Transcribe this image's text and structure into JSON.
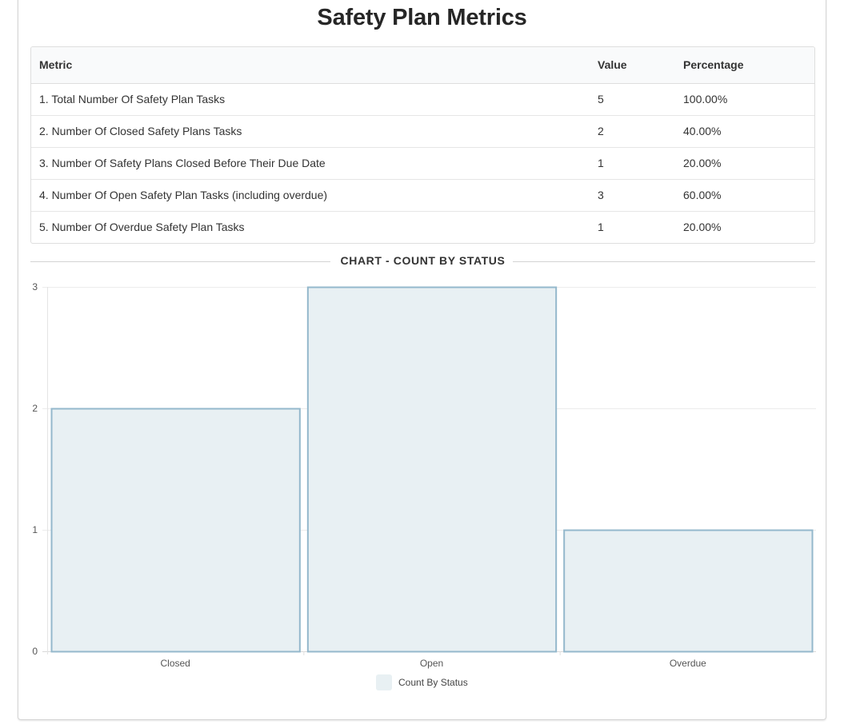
{
  "page": {
    "title": "Safety Plan Metrics"
  },
  "table": {
    "headers": {
      "metric": "Metric",
      "value": "Value",
      "percentage": "Percentage"
    },
    "rows": [
      {
        "metric": "1. Total Number Of Safety Plan Tasks",
        "value": "5",
        "percentage": "100.00%"
      },
      {
        "metric": "2. Number Of Closed Safety Plans Tasks",
        "value": "2",
        "percentage": "40.00%"
      },
      {
        "metric": "3. Number Of Safety Plans Closed Before Their Due Date",
        "value": "1",
        "percentage": "20.00%"
      },
      {
        "metric": "4. Number Of Open Safety Plan Tasks (including overdue)",
        "value": "3",
        "percentage": "60.00%"
      },
      {
        "metric": "5. Number Of Overdue Safety Plan Tasks",
        "value": "1",
        "percentage": "20.00%"
      }
    ]
  },
  "chart_section": {
    "heading": "CHART - COUNT BY STATUS"
  },
  "chart_data": {
    "type": "bar",
    "categories": [
      "Closed",
      "Open",
      "Overdue"
    ],
    "series": [
      {
        "name": "Count By Status",
        "values": [
          2,
          3,
          1
        ]
      }
    ],
    "ylim": [
      0,
      3
    ],
    "yticks": [
      0,
      1,
      2,
      3
    ],
    "grid": true,
    "legend_position": "bottom",
    "bar_fill": "#e8f0f3",
    "bar_stroke": "#94b8cc"
  }
}
